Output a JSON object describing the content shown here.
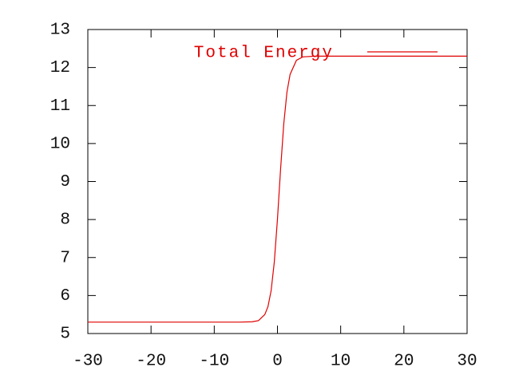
{
  "chart_data": {
    "type": "line",
    "x": [
      -30,
      -10,
      -6,
      -4,
      -3,
      -2,
      -1.5,
      -1,
      -0.5,
      0,
      0.5,
      1,
      1.5,
      2,
      3,
      4,
      6,
      10,
      30
    ],
    "series": [
      {
        "name": "Total Energy",
        "color": "#e00000",
        "values": [
          5.3,
          5.3,
          5.3,
          5.31,
          5.34,
          5.5,
          5.71,
          6.13,
          6.88,
          8.01,
          9.34,
          10.52,
          11.35,
          11.82,
          12.19,
          12.28,
          12.3,
          12.3,
          12.3
        ]
      }
    ],
    "xlim": [
      -30,
      30
    ],
    "xticks": [
      -30,
      -20,
      -10,
      0,
      10,
      20,
      30
    ],
    "ylim": [
      5,
      13
    ],
    "yticks": [
      5,
      6,
      7,
      8,
      9,
      10,
      11,
      12,
      13
    ],
    "legend": "top-right",
    "grid": false
  }
}
